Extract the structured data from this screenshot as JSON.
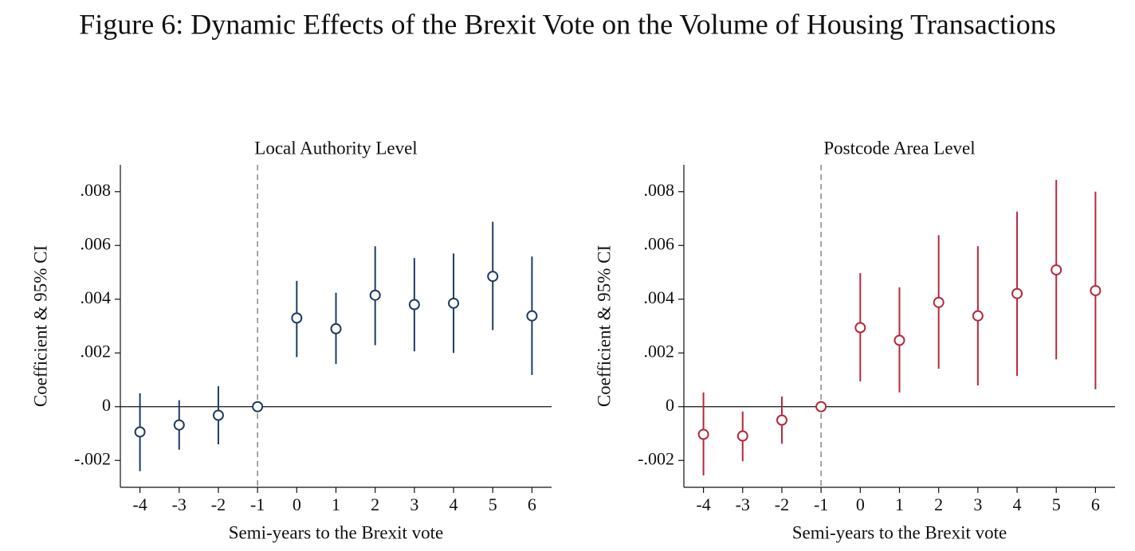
{
  "title": "Figure 6: Dynamic Effects of the Brexit Vote on the Volume of Housing Transactions",
  "chart_data": [
    {
      "type": "errorbar",
      "title": "Local Authority Level",
      "xlabel": "Semi-years to the Brexit vote",
      "ylabel": "Coefficient & 95% CI",
      "x": [
        -4,
        -3,
        -2,
        -1,
        0,
        1,
        2,
        3,
        4,
        5,
        6
      ],
      "series": [
        {
          "color": "#1f3b63",
          "values": [
            -0.00094,
            -0.00068,
            -0.00032,
            0,
            0.0033,
            0.0029,
            0.00415,
            0.0038,
            0.00385,
            0.00485,
            0.00338
          ],
          "lower": [
            -0.0024,
            -0.0016,
            -0.0014,
            0,
            0.00185,
            0.00159,
            0.00229,
            0.00206,
            0.002,
            0.00285,
            0.00118
          ],
          "upper": [
            0.0005,
            0.00024,
            0.00076,
            0,
            0.00468,
            0.00424,
            0.00597,
            0.00553,
            0.0057,
            0.00688,
            0.00559
          ]
        }
      ],
      "xlim": [
        -4.5,
        6.5
      ],
      "ylim": [
        -0.003,
        0.009
      ],
      "xticks": [
        -4,
        -3,
        -2,
        -1,
        0,
        1,
        2,
        3,
        4,
        5,
        6
      ],
      "yticks": [
        {
          "value": -0.002,
          "label": "-.002"
        },
        0,
        {
          "value": 0.002,
          "label": ".002"
        },
        {
          "value": 0.004,
          "label": ".004"
        },
        {
          "value": 0.006,
          "label": ".006"
        },
        {
          "value": 0.008,
          "label": ".008"
        }
      ],
      "hline": 0,
      "vline": -1
    },
    {
      "type": "errorbar",
      "title": "Postcode Area Level",
      "xlabel": "Semi-years to the Brexit vote",
      "ylabel": "Coefficient & 95% CI",
      "x": [
        -4,
        -3,
        -2,
        -1,
        0,
        1,
        2,
        3,
        4,
        5,
        6
      ],
      "series": [
        {
          "color": "#b5283b",
          "values": [
            -0.00103,
            -0.00109,
            -0.0005,
            0,
            0.00294,
            0.00247,
            0.00388,
            0.00338,
            0.00421,
            0.00509,
            0.00432
          ],
          "lower": [
            -0.00256,
            -0.00203,
            -0.00138,
            0,
            0.00094,
            0.00053,
            0.00141,
            0.00079,
            0.00115,
            0.00176,
            0.00065
          ],
          "upper": [
            0.00053,
            -0.00018,
            0.00038,
            0,
            0.00497,
            0.00444,
            0.00638,
            0.00597,
            0.00726,
            0.00844,
            0.008
          ]
        }
      ],
      "xlim": [
        -4.5,
        6.5
      ],
      "ylim": [
        -0.003,
        0.009
      ],
      "xticks": [
        -4,
        -3,
        -2,
        -1,
        0,
        1,
        2,
        3,
        4,
        5,
        6
      ],
      "yticks": [
        {
          "value": -0.002,
          "label": "-.002"
        },
        0,
        {
          "value": 0.002,
          "label": ".002"
        },
        {
          "value": 0.004,
          "label": ".004"
        },
        {
          "value": 0.006,
          "label": ".006"
        },
        {
          "value": 0.008,
          "label": ".008"
        }
      ],
      "hline": 0,
      "vline": -1
    }
  ]
}
